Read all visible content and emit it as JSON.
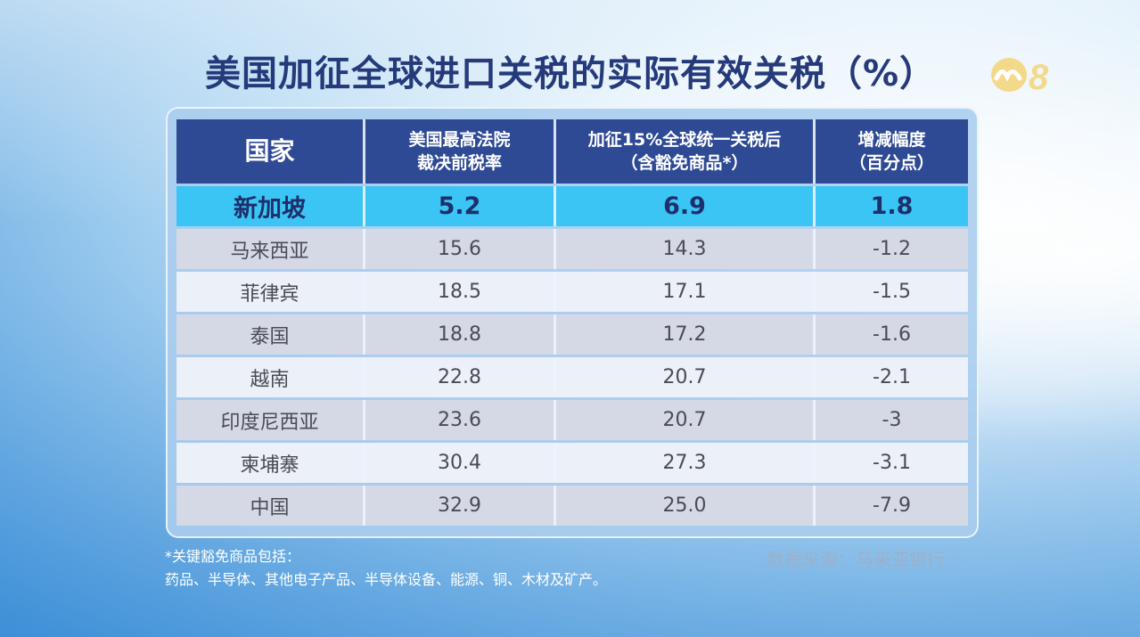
{
  "title": "美国加征全球进口关税的实际有效关税（%）",
  "logo": {
    "text": "8",
    "icon": "channel-8-logo-icon"
  },
  "chart_data": {
    "type": "table",
    "title": "美国加征全球进口关税的实际有效关税（%）",
    "columns": [
      {
        "key": "country",
        "label_lines": [
          "国家"
        ]
      },
      {
        "key": "before",
        "label_lines": [
          "美国最高法院",
          "裁决前税率"
        ]
      },
      {
        "key": "after",
        "label_lines": [
          "加征15%全球统一关税后",
          "（含豁免商品*）"
        ]
      },
      {
        "key": "change",
        "label_lines": [
          "增减幅度",
          "（百分点）"
        ]
      }
    ],
    "rows": [
      {
        "country": "新加坡",
        "before": "5.2",
        "after": "6.9",
        "change": "1.8",
        "highlight": true
      },
      {
        "country": "马来西亚",
        "before": "15.6",
        "after": "14.3",
        "change": "-1.2"
      },
      {
        "country": "菲律宾",
        "before": "18.5",
        "after": "17.1",
        "change": "-1.5"
      },
      {
        "country": "泰国",
        "before": "18.8",
        "after": "17.2",
        "change": "-1.6"
      },
      {
        "country": "越南",
        "before": "22.8",
        "after": "20.7",
        "change": "-2.1"
      },
      {
        "country": "印度尼西亚",
        "before": "23.6",
        "after": "20.7",
        "change": "-3"
      },
      {
        "country": "柬埔寨",
        "before": "30.4",
        "after": "27.3",
        "change": "-3.1"
      },
      {
        "country": "中国",
        "before": "32.9",
        "after": "25.0",
        "change": "-7.9"
      }
    ]
  },
  "footnote": {
    "line1": "*关键豁免商品包括：",
    "line2": "药品、半导体、其他电子产品、半导体设备、能源、铜、木材及矿产。"
  },
  "source": "数据来源：马来亚银行",
  "colors": {
    "header_bg": "#2e4a94",
    "highlight_bg": "#3ac5f4",
    "title": "#243a7a",
    "row_alt_1": "#d5d9e6",
    "row_alt_2": "#ecf0f8"
  }
}
